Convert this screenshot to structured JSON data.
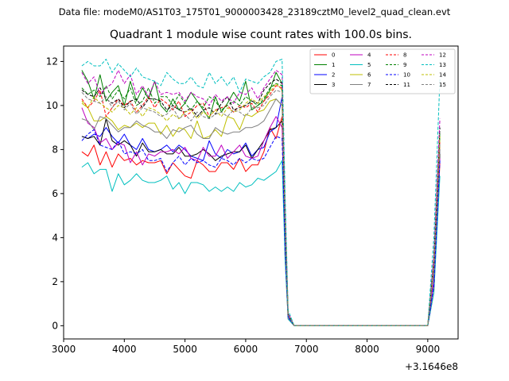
{
  "chart_data": {
    "type": "line",
    "suptitle": "Data file: modeM0/AS1T03_175T01_9000003428_23189cztM0_level2_quad_clean.evt",
    "title": "Quadrant 1 module wise count rates with 100.0s bins.",
    "xlabel": "",
    "ylabel": "",
    "offset_label": "+3.1646e8",
    "xlim": [
      3000,
      9500
    ],
    "ylim": [
      -0.6,
      12.7
    ],
    "xticks": [
      3000,
      4000,
      5000,
      6000,
      7000,
      8000,
      9000
    ],
    "xtick_labels": [
      "3000",
      "4000",
      "5000",
      "6000",
      "7000",
      "8000",
      "9000"
    ],
    "yticks": [
      0,
      2,
      4,
      6,
      8,
      10,
      12
    ],
    "ytick_labels": [
      "0",
      "2",
      "4",
      "6",
      "8",
      "10",
      "12"
    ],
    "legend_position": "upper right",
    "x_active": [
      3300,
      3400,
      3500,
      3600,
      3700,
      3800,
      3900,
      4000,
      4100,
      4200,
      4300,
      4400,
      4500,
      4600,
      4700,
      4800,
      4900,
      5000,
      5100,
      5200,
      5300,
      5400,
      5500,
      5600,
      5700,
      5800,
      5900,
      6000,
      6100,
      6200,
      6300,
      6400,
      6500,
      6600
    ],
    "x_tail": [
      6650,
      6700,
      6800,
      8900,
      9000,
      9100,
      9200
    ],
    "series": [
      {
        "name": "0",
        "color": "#ff0000",
        "dash": "solid",
        "values": [
          7.9,
          7.7,
          8.2,
          7.3,
          7.9,
          7.2,
          7.8,
          7.5,
          7.6,
          7.3,
          7.5,
          7.4,
          7.4,
          7.5,
          6.9,
          7.4,
          7.1,
          6.8,
          6.7,
          7.5,
          7.3,
          7.0,
          7.0,
          7.4,
          7.4,
          7.1,
          7.6,
          7.0,
          7.3,
          7.3,
          7.9,
          9.0,
          8.5,
          9.5
        ],
        "tail": [
          3.0,
          0.3,
          0,
          0,
          0,
          1.5,
          7.4
        ]
      },
      {
        "name": "1",
        "color": "#008000",
        "dash": "solid",
        "values": [
          11.6,
          11.1,
          10.3,
          11.4,
          10.2,
          10.6,
          10.9,
          10.0,
          11.1,
          10.2,
          10.8,
          10.3,
          11.1,
          10.0,
          9.7,
          10.3,
          9.8,
          10.1,
          10.6,
          10.2,
          9.8,
          9.4,
          10.4,
          9.7,
          10.1,
          10.6,
          10.2,
          11.1,
          9.8,
          10.0,
          10.2,
          10.7,
          11.5,
          11.0
        ],
        "tail": [
          5.0,
          0.5,
          0,
          0,
          0,
          3.0,
          8.6
        ]
      },
      {
        "name": "2",
        "color": "#0000ff",
        "dash": "solid",
        "values": [
          8.6,
          8.5,
          8.7,
          8.6,
          9.0,
          8.6,
          8.3,
          8.7,
          8.2,
          8.0,
          8.5,
          8.0,
          7.9,
          8.0,
          8.2,
          7.9,
          8.2,
          8.0,
          7.7,
          7.6,
          7.5,
          8.4,
          7.8,
          7.6,
          8.0,
          7.8,
          7.9,
          8.3,
          7.7,
          8.0,
          8.1,
          8.8,
          9.0,
          10.4
        ],
        "tail": [
          4.0,
          0.4,
          0,
          0,
          0,
          2.0,
          8.0
        ]
      },
      {
        "name": "3",
        "color": "#000000",
        "dash": "solid",
        "values": [
          8.6,
          8.5,
          8.6,
          8.2,
          9.4,
          8.4,
          8.2,
          8.4,
          8.2,
          7.7,
          8.3,
          7.9,
          7.9,
          8.0,
          7.8,
          7.8,
          8.1,
          7.7,
          7.7,
          7.8,
          8.0,
          7.8,
          7.5,
          7.7,
          7.8,
          7.9,
          7.9,
          8.2,
          7.6,
          8.0,
          8.4,
          8.9,
          9.0,
          9.3
        ],
        "tail": [
          4.0,
          0.4,
          0,
          0,
          0,
          2.0,
          7.8
        ]
      },
      {
        "name": "4",
        "color": "#bf00bf",
        "dash": "solid",
        "values": [
          9.9,
          9.2,
          9.0,
          8.3,
          8.5,
          8.0,
          8.3,
          8.2,
          7.4,
          7.9,
          7.3,
          7.8,
          7.7,
          7.9,
          7.9,
          8.0,
          7.8,
          8.1,
          7.6,
          7.5,
          8.1,
          7.7,
          7.7,
          8.2,
          7.6,
          7.9,
          8.2,
          7.7,
          7.6,
          7.7,
          8.4,
          9.0,
          9.5,
          9.0
        ],
        "tail": [
          4.0,
          0.4,
          0,
          0,
          0,
          2.0,
          7.6
        ]
      },
      {
        "name": "5",
        "color": "#00bfbf",
        "dash": "solid",
        "values": [
          7.2,
          7.4,
          6.9,
          7.1,
          7.1,
          6.1,
          6.9,
          6.4,
          6.6,
          6.9,
          6.6,
          6.5,
          6.5,
          6.6,
          6.8,
          6.2,
          6.5,
          6.0,
          6.5,
          6.5,
          6.4,
          6.1,
          6.3,
          6.1,
          6.3,
          6.1,
          6.5,
          6.3,
          6.4,
          6.7,
          6.6,
          6.8,
          7.0,
          7.5
        ],
        "tail": [
          3.0,
          0.3,
          0,
          0,
          0,
          1.5,
          6.8
        ]
      },
      {
        "name": "6",
        "color": "#bfbf00",
        "dash": "solid",
        "values": [
          10.1,
          9.9,
          9.3,
          9.3,
          9.5,
          9.3,
          8.9,
          9.1,
          9.0,
          9.2,
          9.0,
          9.2,
          9.2,
          8.7,
          9.1,
          8.6,
          9.0,
          8.9,
          8.5,
          9.3,
          8.5,
          8.6,
          8.9,
          8.6,
          9.5,
          9.4,
          8.9,
          9.6,
          9.5,
          9.7,
          9.8,
          10.2,
          10.3,
          10.0
        ],
        "tail": [
          4.5,
          0.5,
          0,
          0,
          0,
          2.5,
          8.2
        ]
      },
      {
        "name": "7",
        "color": "#808080",
        "dash": "solid",
        "values": [
          9.4,
          9.3,
          8.9,
          9.5,
          9.4,
          9.1,
          8.8,
          9.0,
          9.0,
          9.3,
          9.1,
          9.0,
          8.8,
          8.8,
          8.5,
          8.9,
          8.8,
          9.0,
          9.1,
          8.7,
          8.5,
          8.5,
          9.0,
          8.8,
          8.7,
          8.8,
          8.8,
          9.0,
          9.0,
          9.1,
          9.3,
          9.8,
          10.3,
          10.0
        ],
        "tail": [
          4.5,
          0.5,
          0,
          0,
          0,
          2.5,
          8.0
        ]
      },
      {
        "name": "8",
        "color": "#ff0000",
        "dash": "dashed",
        "values": [
          10.3,
          9.9,
          10.2,
          10.7,
          9.5,
          9.9,
          10.3,
          10.0,
          10.2,
          9.7,
          10.0,
          10.4,
          9.9,
          10.3,
          10.1,
          9.8,
          10.2,
          9.5,
          9.7,
          10.0,
          10.1,
          9.5,
          9.8,
          9.9,
          10.0,
          9.7,
          10.0,
          9.9,
          10.1,
          9.7,
          10.2,
          10.5,
          10.9,
          10.8
        ],
        "tail": [
          4.5,
          0.5,
          0,
          0,
          0,
          2.8,
          8.4
        ]
      },
      {
        "name": "9",
        "color": "#008000",
        "dash": "dashed",
        "values": [
          10.8,
          10.5,
          10.7,
          10.4,
          10.9,
          10.3,
          10.7,
          10.3,
          10.8,
          10.0,
          10.2,
          10.8,
          10.1,
          10.4,
          10.4,
          10.0,
          10.5,
          10.1,
          9.8,
          10.2,
          9.9,
          10.4,
          10.2,
          9.8,
          10.0,
          10.2,
          10.0,
          10.4,
          10.2,
          10.0,
          10.3,
          10.8,
          11.0,
          10.9
        ],
        "tail": [
          5.0,
          0.5,
          0,
          0,
          0,
          3.0,
          8.8
        ]
      },
      {
        "name": "10",
        "color": "#0000ff",
        "dash": "dashed",
        "values": [
          8.4,
          8.7,
          8.9,
          8.2,
          8.1,
          8.0,
          8.4,
          7.8,
          7.9,
          7.8,
          8.0,
          7.5,
          7.5,
          7.6,
          7.0,
          7.4,
          7.7,
          7.3,
          7.6,
          7.4,
          7.5,
          7.3,
          7.2,
          7.6,
          7.5,
          7.3,
          7.6,
          7.4,
          7.6,
          7.5,
          7.6,
          8.1,
          8.6,
          8.5
        ],
        "tail": [
          3.5,
          0.4,
          0,
          0,
          0,
          1.8,
          7.5
        ]
      },
      {
        "name": "11",
        "color": "#000000",
        "dash": "dashed",
        "values": [
          10.7,
          10.5,
          10.4,
          10.8,
          10.3,
          10.1,
          10.3,
          9.9,
          10.2,
          10.3,
          9.9,
          10.3,
          10.3,
          10.2,
          9.8,
          10.0,
          9.8,
          9.7,
          9.9,
          9.5,
          9.8,
          9.9,
          9.6,
          10.1,
          10.4,
          9.8,
          9.9,
          10.0,
          10.2,
          10.1,
          10.7,
          11.0,
          11.2,
          11.0
        ],
        "tail": [
          5.0,
          0.5,
          0,
          0,
          0,
          3.0,
          9.0
        ]
      },
      {
        "name": "12",
        "color": "#bf00bf",
        "dash": "dashed",
        "values": [
          11.5,
          11.0,
          11.3,
          10.5,
          10.8,
          11.0,
          11.6,
          11.0,
          11.4,
          10.5,
          10.9,
          10.4,
          11.1,
          10.5,
          10.6,
          10.5,
          10.6,
          10.2,
          10.6,
          10.4,
          10.3,
          10.0,
          10.5,
          10.2,
          10.4,
          10.1,
          10.6,
          10.5,
          10.8,
          10.3,
          10.8,
          11.2,
          11.6,
          11.4
        ],
        "tail": [
          5.5,
          0.6,
          0,
          0,
          0,
          3.2,
          9.4
        ]
      },
      {
        "name": "13",
        "color": "#00bfbf",
        "dash": "dashed",
        "values": [
          11.8,
          12.0,
          11.8,
          11.8,
          12.1,
          11.5,
          11.9,
          11.6,
          11.3,
          11.7,
          11.3,
          11.2,
          11.1,
          10.9,
          11.5,
          11.2,
          11.0,
          11.0,
          11.3,
          10.9,
          10.8,
          11.5,
          11.0,
          11.3,
          10.9,
          11.3,
          10.6,
          11.2,
          11.1,
          11.0,
          11.3,
          11.5,
          12.0,
          12.1
        ],
        "tail": [
          6.0,
          0.7,
          0,
          0,
          0,
          4.0,
          11.2
        ]
      },
      {
        "name": "14",
        "color": "#bfbf00",
        "dash": "dashed",
        "values": [
          10.2,
          9.9,
          10.4,
          10.1,
          9.9,
          9.7,
          10.0,
          9.9,
          9.6,
          9.9,
          9.5,
          9.9,
          9.8,
          9.6,
          9.3,
          9.6,
          9.4,
          9.7,
          9.8,
          9.4,
          9.7,
          9.5,
          9.8,
          9.5,
          9.9,
          9.7,
          9.8,
          10.1,
          10.3,
          10.1,
          10.4,
          10.6,
          11.0,
          10.7
        ],
        "tail": [
          4.8,
          0.5,
          0,
          0,
          0,
          2.8,
          8.6
        ]
      },
      {
        "name": "15",
        "color": "#808080",
        "dash": "dashed",
        "values": [
          10.6,
          10.3,
          10.2,
          10.1,
          10.4,
          9.9,
          10.2,
          9.8,
          10.1,
          9.6,
          9.9,
          9.8,
          9.7,
          9.5,
          9.6,
          9.9,
          9.4,
          9.6,
          9.3,
          9.7,
          9.5,
          9.4,
          9.6,
          9.7,
          9.5,
          9.8,
          9.7,
          9.5,
          9.9,
          9.9,
          10.0,
          10.4,
          10.7,
          10.6
        ],
        "tail": [
          4.8,
          0.5,
          0,
          0,
          0,
          2.8,
          8.3
        ]
      }
    ]
  }
}
